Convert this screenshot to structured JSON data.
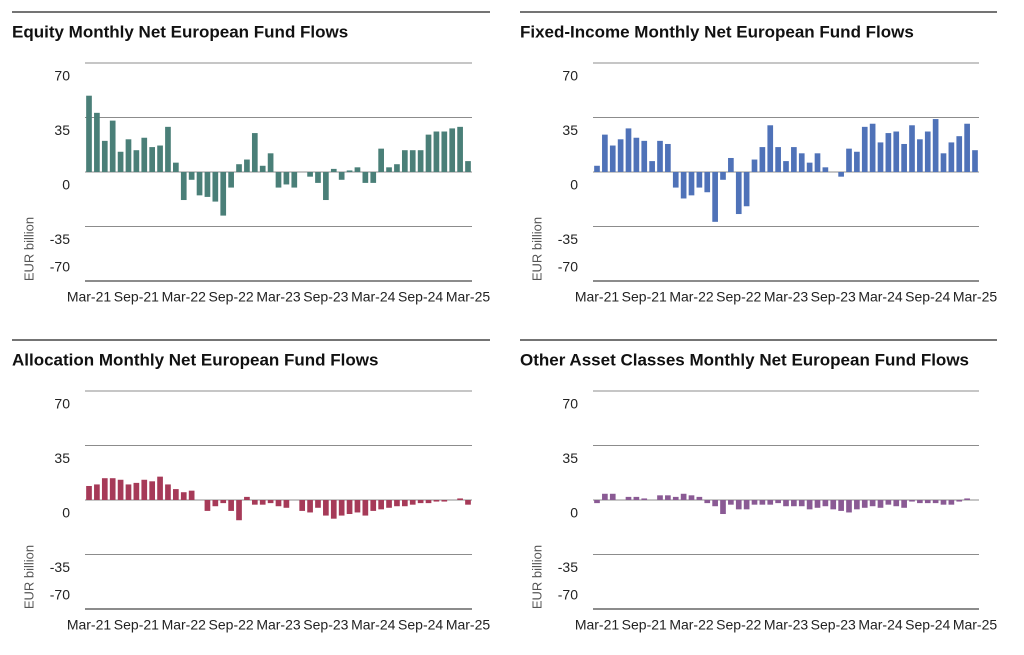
{
  "chart_data": [
    {
      "type": "bar",
      "title": "Equity Monthly Net European Fund Flows",
      "y_label": "EUR billion",
      "color": "#4a7f78",
      "categories": [
        "Mar-21",
        null,
        null,
        null,
        null,
        null,
        "Sep-21",
        null,
        null,
        null,
        null,
        null,
        "Mar-22",
        null,
        null,
        null,
        null,
        null,
        "Sep-22",
        null,
        null,
        null,
        null,
        null,
        "Mar-23",
        null,
        null,
        null,
        null,
        null,
        "Sep-23",
        null,
        null,
        null,
        null,
        null,
        "Mar-24",
        null,
        null,
        null,
        null,
        null,
        "Sep-24",
        null,
        null,
        null,
        null,
        null,
        "Mar-25"
      ],
      "values": [
        49,
        38,
        20,
        33,
        13,
        21,
        14,
        22,
        16,
        17,
        29,
        6,
        -18,
        -5,
        -15,
        -16,
        -19,
        -28,
        -10,
        5,
        8,
        25,
        4,
        12,
        -10,
        -8,
        -10,
        0,
        -3,
        -7,
        -18,
        2,
        -5,
        1,
        3,
        -7,
        -7,
        15,
        3,
        5,
        14,
        14,
        14,
        24,
        26,
        26,
        28,
        29,
        7
      ],
      "ylim": [
        -70,
        70
      ],
      "yticks": [
        70,
        35,
        0,
        -35,
        -70
      ],
      "grid": true
    },
    {
      "type": "bar",
      "title": "Fixed-Income Monthly Net European Fund Flows",
      "y_label": "EUR billion",
      "color": "#4f72b8",
      "categories": [
        "Mar-21",
        null,
        null,
        null,
        null,
        null,
        "Sep-21",
        null,
        null,
        null,
        null,
        null,
        "Mar-22",
        null,
        null,
        null,
        null,
        null,
        "Sep-22",
        null,
        null,
        null,
        null,
        null,
        "Mar-23",
        null,
        null,
        null,
        null,
        null,
        "Sep-23",
        null,
        null,
        null,
        null,
        null,
        "Mar-24",
        null,
        null,
        null,
        null,
        null,
        "Sep-24",
        null,
        null,
        null,
        null,
        null,
        "Mar-25"
      ],
      "values": [
        4,
        24,
        17,
        21,
        28,
        22,
        20,
        7,
        20,
        18,
        -10,
        -17,
        -15,
        -10,
        -13,
        -32,
        -5,
        9,
        -27,
        -22,
        8,
        16,
        30,
        16,
        7,
        16,
        12,
        6,
        12,
        3,
        0,
        -3,
        15,
        13,
        29,
        31,
        19,
        25,
        26,
        18,
        30,
        21,
        26,
        34,
        12,
        19,
        23,
        31,
        14
      ],
      "ylim": [
        -70,
        70
      ],
      "yticks": [
        70,
        35,
        0,
        -35,
        -70
      ],
      "grid": true
    },
    {
      "type": "bar",
      "title": "Allocation Monthly Net European Fund Flows",
      "y_label": "EUR billion",
      "color": "#a63a58",
      "categories": [
        "Mar-21",
        null,
        null,
        null,
        null,
        null,
        "Sep-21",
        null,
        null,
        null,
        null,
        null,
        "Mar-22",
        null,
        null,
        null,
        null,
        null,
        "Sep-22",
        null,
        null,
        null,
        null,
        null,
        "Mar-23",
        null,
        null,
        null,
        null,
        null,
        "Sep-23",
        null,
        null,
        null,
        null,
        null,
        "Mar-24",
        null,
        null,
        null,
        null,
        null,
        "Sep-24",
        null,
        null,
        null,
        null,
        null,
        "Mar-25"
      ],
      "values": [
        9,
        10,
        14,
        14,
        13,
        10,
        11,
        13,
        12,
        15,
        10,
        7,
        5,
        6,
        0,
        -7,
        -4,
        -2,
        -7,
        -13,
        2,
        -3,
        -3,
        -2,
        -4,
        -5,
        0,
        -7,
        -8,
        -5,
        -10,
        -12,
        -10,
        -9,
        -8,
        -10,
        -7,
        -6,
        -5,
        -4,
        -4,
        -3,
        -2,
        -2,
        -1,
        -1,
        0,
        1,
        -3
      ],
      "ylim": [
        -70,
        70
      ],
      "yticks": [
        70,
        35,
        0,
        -35,
        -70
      ],
      "grid": true
    },
    {
      "type": "bar",
      "title": "Other Asset Classes Monthly Net European Fund Flows",
      "y_label": "EUR billion",
      "color": "#8a5a94",
      "categories": [
        "Mar-21",
        null,
        null,
        null,
        null,
        null,
        "Sep-21",
        null,
        null,
        null,
        null,
        null,
        "Mar-22",
        null,
        null,
        null,
        null,
        null,
        "Sep-22",
        null,
        null,
        null,
        null,
        null,
        "Mar-23",
        null,
        null,
        null,
        null,
        null,
        "Sep-23",
        null,
        null,
        null,
        null,
        null,
        "Mar-24",
        null,
        null,
        null,
        null,
        null,
        "Sep-24",
        null,
        null,
        null,
        null,
        null,
        "Mar-25"
      ],
      "values": [
        -2,
        4,
        4,
        0,
        2,
        2,
        1,
        0,
        3,
        3,
        2,
        4,
        3,
        2,
        -2,
        -4,
        -9,
        -3,
        -6,
        -6,
        -3,
        -3,
        -3,
        -2,
        -4,
        -4,
        -4,
        -6,
        -5,
        -4,
        -6,
        -7,
        -8,
        -6,
        -5,
        -4,
        -5,
        -3,
        -4,
        -5,
        -1,
        -2,
        -2,
        -2,
        -3,
        -3,
        -1,
        1,
        0
      ],
      "ylim": [
        -70,
        70
      ],
      "yticks": [
        70,
        35,
        0,
        -35,
        -70
      ],
      "grid": true
    }
  ]
}
